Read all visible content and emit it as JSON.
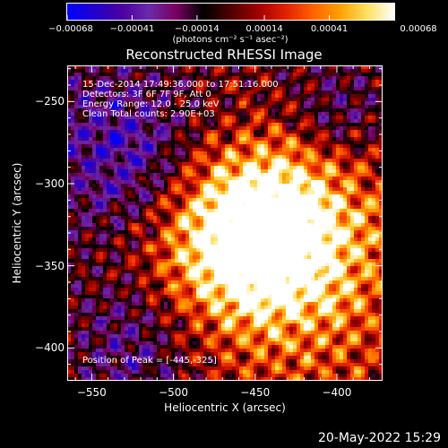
{
  "chart_data": {
    "type": "heatmap",
    "title": "Reconstructed RHESSI Image",
    "xlabel": "Heliocentric X (arcsec)",
    "ylabel": "Heliocentric Y (arcsec)",
    "xlim": [
      -565,
      -372
    ],
    "ylim": [
      -420,
      -228
    ],
    "x_ticks": [
      -550,
      -500,
      -450,
      -400
    ],
    "y_ticks": [
      -250,
      -300,
      -350,
      -400
    ],
    "x_tick_labels": [
      "−550",
      "−500",
      "−450",
      "−400"
    ],
    "y_tick_labels": [
      "−250",
      "−300",
      "−350",
      "−400"
    ],
    "colorbar": {
      "ticks": [
        -0.00068,
        -0.00041,
        -0.00014,
        0.00014,
        0.00041,
        0.00068
      ],
      "tick_labels": [
        "−0.00068",
        "−0.00041",
        "−0.00014",
        "0.00014",
        "0.00041",
        "0.00068"
      ],
      "units": "(photons cm⁻² s⁻¹ asec⁻²)",
      "colormap": [
        "#0000ff",
        "#2200cc",
        "#4a00a0",
        "#6a2aa8",
        "#7a0060",
        "#000000",
        "#500000",
        "#a00000",
        "#e02000",
        "#ff6000",
        "#ffa000",
        "#ffe060",
        "#ffffff"
      ]
    },
    "peak": [
      -445,
      -325
    ],
    "annotations": [
      "15-Dec-2014 17:49:36.000 to 17:51:16.000",
      "Detectors: 3F 6F 7F 9F, Att 0",
      "Energy Range: 12.0 - 25.0 keV",
      "Clean    Total counts: 2.90E+03"
    ],
    "peak_label": "Position of Peak = [-445,-325]"
  },
  "footer": {
    "timestamp": "20-May-2022 15:29"
  }
}
